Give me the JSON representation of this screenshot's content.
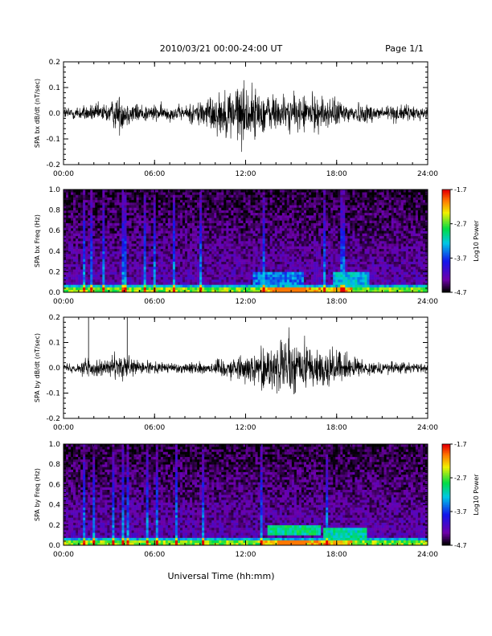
{
  "header": {
    "title": "2010/03/21  00:00-24:00 UT",
    "page": "Page 1/1"
  },
  "xlabel": "Universal Time (hh:mm)",
  "chart_data": [
    {
      "type": "line",
      "ylabel": "SPA bx dB/dt (nT/sec)",
      "xlim": [
        0,
        24
      ],
      "ylim": [
        -0.2,
        0.2
      ],
      "xticks": [
        "00:00",
        "06:00",
        "12:00",
        "18:00",
        "24:00"
      ],
      "yticks": [
        "-0.2",
        "-0.1",
        "0.0",
        "0.1",
        "0.2"
      ],
      "envelope": {
        "hours": [
          0,
          1,
          2,
          3,
          3.6,
          4.2,
          5,
          6,
          7,
          8,
          8.5,
          9,
          10,
          11,
          11.5,
          12,
          12.5,
          13,
          14,
          15,
          16,
          17,
          18,
          19,
          20,
          21,
          22,
          23,
          24
        ],
        "amplitude": [
          0.03,
          0.035,
          0.04,
          0.05,
          0.09,
          0.06,
          0.045,
          0.04,
          0.035,
          0.035,
          0.05,
          0.07,
          0.09,
          0.12,
          0.15,
          0.14,
          0.12,
          0.1,
          0.09,
          0.08,
          0.09,
          0.08,
          0.065,
          0.05,
          0.045,
          0.04,
          0.04,
          0.035,
          0.03
        ]
      }
    },
    {
      "type": "heatmap",
      "ylabel": "SPA bx Freq (Hz)",
      "xlim": [
        0,
        24
      ],
      "ylim": [
        0,
        1.0
      ],
      "xticks": [
        "00:00",
        "06:00",
        "12:00",
        "18:00",
        "24:00"
      ],
      "yticks": [
        "0.0",
        "0.2",
        "0.4",
        "0.6",
        "0.8",
        "1.0"
      ],
      "colorbar": {
        "label": "Log10 Power",
        "ticks": [
          "-1.7",
          "-2.7",
          "-3.7",
          "-4.7"
        ],
        "range": [
          -4.7,
          -1.7
        ]
      },
      "features": {
        "streak_hours": [
          1.3,
          1.8,
          2.6,
          3.9,
          4.1,
          5.4,
          6.0,
          7.3,
          9.0,
          13.2,
          17.2,
          18.4
        ],
        "patches": [
          {
            "t0": 12.5,
            "t1": 15.8,
            "f0": 0.05,
            "f1": 0.2,
            "level": -3.5
          },
          {
            "t0": 17.8,
            "t1": 20.2,
            "f0": 0.05,
            "f1": 0.2,
            "level": -3.3
          }
        ]
      }
    },
    {
      "type": "line",
      "ylabel": "SPA by dB/dt (nT/sec)",
      "xlim": [
        0,
        24
      ],
      "ylim": [
        -0.2,
        0.2
      ],
      "xticks": [
        "00:00",
        "06:00",
        "12:00",
        "18:00",
        "24:00"
      ],
      "yticks": [
        "-0.2",
        "-0.1",
        "0.0",
        "0.1",
        "0.2"
      ],
      "envelope": {
        "hours": [
          0,
          1,
          1.6,
          2,
          3,
          3.6,
          4.2,
          5,
          6,
          7,
          8,
          9,
          10,
          11,
          12,
          13,
          14,
          14.8,
          15.5,
          16,
          17,
          18,
          19,
          20,
          21,
          22,
          23,
          24
        ],
        "amplitude": [
          0.02,
          0.025,
          0.06,
          0.04,
          0.04,
          0.08,
          0.05,
          0.035,
          0.03,
          0.025,
          0.025,
          0.03,
          0.04,
          0.05,
          0.06,
          0.09,
          0.13,
          0.15,
          0.14,
          0.12,
          0.1,
          0.08,
          0.05,
          0.03,
          0.03,
          0.03,
          0.025,
          0.025
        ]
      },
      "spikes": [
        {
          "hour": 1.65,
          "value": 0.2
        },
        {
          "hour": 4.2,
          "value": 0.2
        }
      ]
    },
    {
      "type": "heatmap",
      "ylabel": "SPA by Freq (Hz)",
      "xlim": [
        0,
        24
      ],
      "ylim": [
        0,
        1.0
      ],
      "xticks": [
        "00:00",
        "06:00",
        "12:00",
        "18:00",
        "24:00"
      ],
      "yticks": [
        "0.0",
        "0.2",
        "0.4",
        "0.6",
        "0.8",
        "1.0"
      ],
      "colorbar": {
        "label": "Log10 Power",
        "ticks": [
          "-1.7",
          "-2.7",
          "-3.7",
          "-4.7"
        ],
        "range": [
          -4.7,
          -1.7
        ]
      },
      "features": {
        "streak_hours": [
          1.4,
          2.0,
          3.3,
          3.9,
          4.2,
          5.5,
          6.2,
          7.5,
          9.2,
          13.0,
          17.4
        ],
        "patches": [
          {
            "t0": 13.5,
            "t1": 17.0,
            "f0": 0.1,
            "f1": 0.2,
            "level": -3.0
          },
          {
            "t0": 17.2,
            "t1": 20.0,
            "f0": 0.05,
            "f1": 0.17,
            "level": -3.1
          }
        ]
      }
    }
  ]
}
